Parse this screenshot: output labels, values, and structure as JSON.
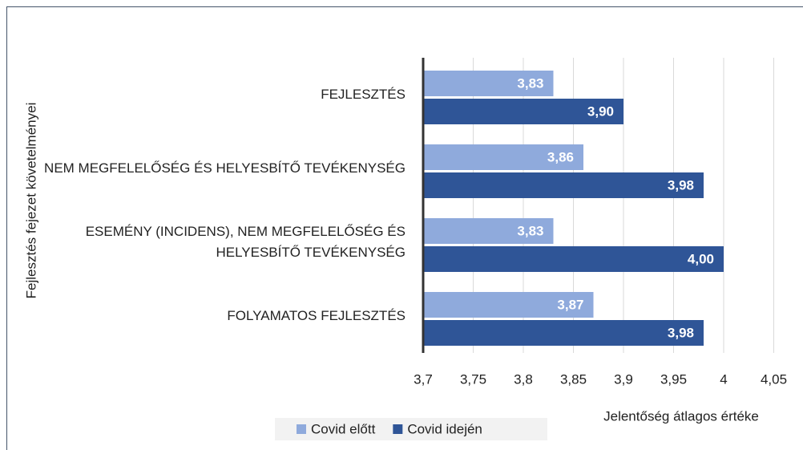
{
  "chart_data": {
    "type": "barh",
    "categories": [
      "FEJLESZTÉS",
      "NEM MEGFELELŐSÉG ÉS HELYESBÍTŐ TEVÉKENYSÉG",
      "ESEMÉNY (INCIDENS), NEM MEGFELELŐSÉG ÉS HELYESBÍTŐ TEVÉKENYSÉG",
      "FOLYAMATOS FEJLESZTÉS"
    ],
    "series": [
      {
        "name": "Covid előtt",
        "color": "#8faadc",
        "values": [
          3.83,
          3.86,
          3.83,
          3.87
        ],
        "value_labels": [
          "3,83",
          "3,86",
          "3,83",
          "3,87"
        ]
      },
      {
        "name": "Covid idején",
        "color": "#2f5597",
        "values": [
          3.9,
          3.98,
          4.0,
          3.98
        ],
        "value_labels": [
          "3,90",
          "3,98",
          "4,00",
          "3,98"
        ]
      }
    ],
    "xlabel": "Jelentőség átlagos értéke",
    "ylabel": "Fejlesztés fejezet követelményei",
    "xlim": [
      3.7,
      4.05
    ],
    "xticks": [
      {
        "value": 3.7,
        "label": "3,7"
      },
      {
        "value": 3.75,
        "label": "3,75"
      },
      {
        "value": 3.8,
        "label": "3,8"
      },
      {
        "value": 3.85,
        "label": "3,85"
      },
      {
        "value": 3.9,
        "label": "3,9"
      },
      {
        "value": 3.95,
        "label": "3,95"
      },
      4,
      {
        "value": 4.05,
        "label": "4,05"
      }
    ],
    "grid": true,
    "legend": "bottom"
  }
}
